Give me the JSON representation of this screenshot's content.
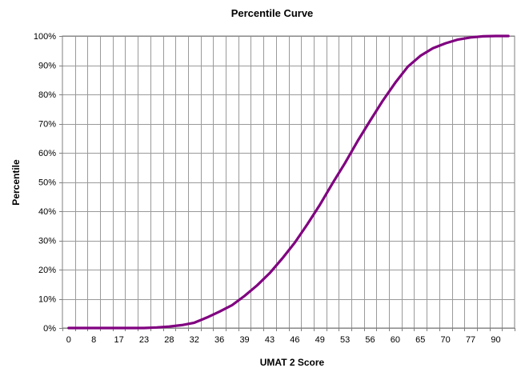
{
  "chart_data": {
    "type": "line",
    "title": "Percentile Curve",
    "xlabel": "UMAT 2 Score",
    "ylabel": "Percentile",
    "grid": true,
    "legend": "none",
    "line_color": "#800080",
    "x_tick_labels": [
      "0",
      "8",
      "17",
      "23",
      "28",
      "32",
      "36",
      "39",
      "43",
      "46",
      "49",
      "53",
      "56",
      "60",
      "65",
      "70",
      "77",
      "90"
    ],
    "y_ticks": [
      0,
      10,
      20,
      30,
      40,
      50,
      60,
      70,
      80,
      90,
      100
    ],
    "y_tick_labels": [
      "0%",
      "10%",
      "20%",
      "30%",
      "40%",
      "50%",
      "60%",
      "70%",
      "80%",
      "90%",
      "100%"
    ],
    "ylim": [
      0,
      100
    ],
    "series": [
      {
        "values": [
          0,
          0,
          0,
          0,
          0,
          0,
          0,
          0.2,
          0.5,
          1,
          1.8,
          3.6,
          5.6,
          7.8,
          11,
          14.6,
          18.8,
          23.8,
          29.2,
          35.5,
          42.2,
          49.5,
          56.5,
          64,
          71,
          77.8,
          84,
          89.5,
          93.2,
          95.8,
          97.5,
          98.8,
          99.5,
          99.9,
          100,
          100
        ]
      }
    ]
  }
}
